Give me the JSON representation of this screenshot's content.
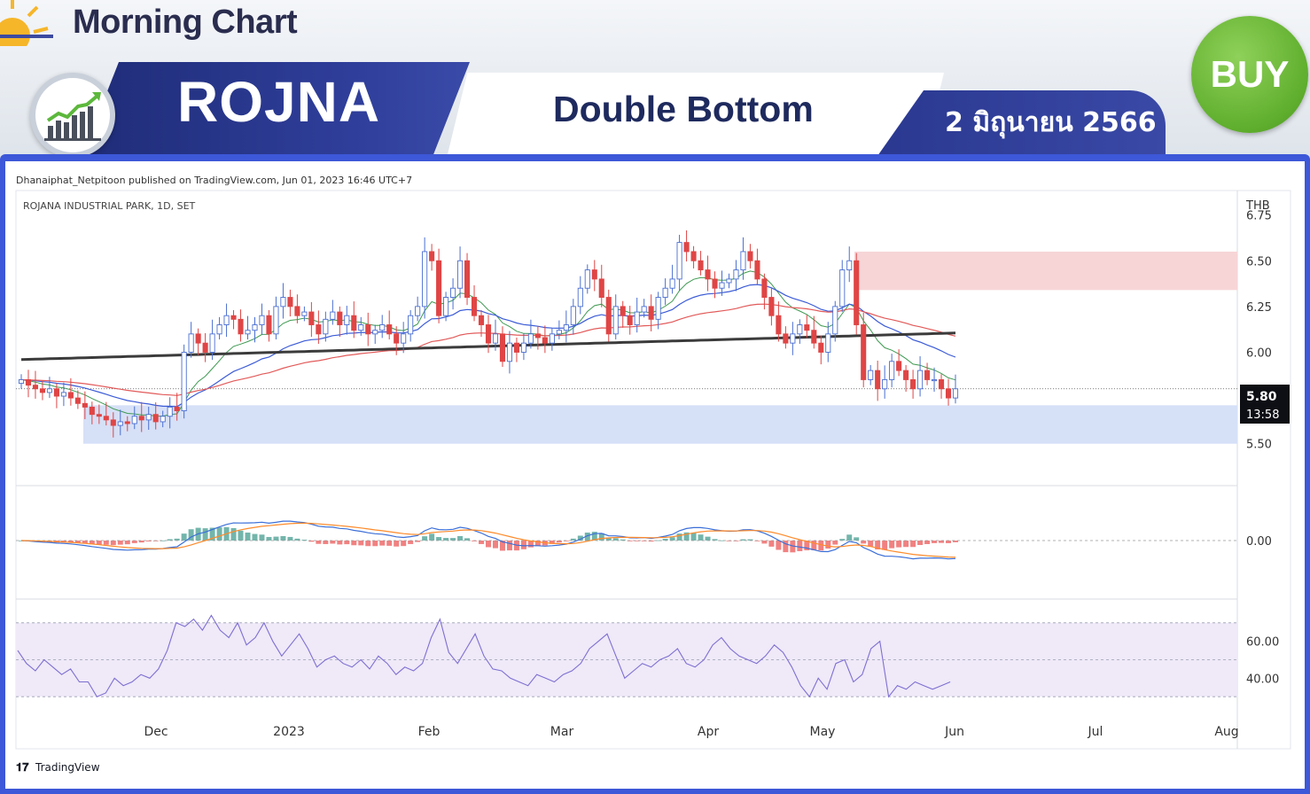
{
  "header": {
    "brand": "Morning Chart",
    "ticker": "ROJNA",
    "pattern": "Double Bottom",
    "date": "2 มิถุนายน 2566",
    "signal": "BUY"
  },
  "colors": {
    "up": "#4a6fd1",
    "down": "#e04545",
    "ema_green": "#3f9a52",
    "ema_blue": "#3b5bd6",
    "ema_red": "#e25a5a",
    "sma_black": "#3b3b3b",
    "macd_line": "#3b6fd8",
    "macd_signal": "#ff8a2a",
    "rsi_line": "#7e6fd1",
    "resistance_zone": "#f7d5d7",
    "support_zone": "#d6e0f7",
    "rsi_band": "#efe9f8"
  },
  "chart_meta": {
    "publisher": "Dhanaiphat_Netpitoon published on TradingView.com, Jun 01, 2023 16:46 UTC+7",
    "symbol": "ROJANA INDUSTRIAL PARK, 1D, SET",
    "currency": "THB",
    "last_price": "5.80",
    "countdown": "13:58",
    "footer": "TradingView"
  },
  "chart_data": [
    {
      "type": "candlestick",
      "ylim": [
        5.3,
        6.85
      ],
      "yticks": [
        "6.75",
        "6.50",
        "6.25",
        "6.00",
        "5.50"
      ],
      "xticks": [
        "Dec",
        "2023",
        "Feb",
        "Mar",
        "Apr",
        "May",
        "Jun",
        "Jul",
        "Aug"
      ],
      "zones": [
        {
          "label": "resistance",
          "from": 6.34,
          "to": 6.55
        },
        {
          "label": "support",
          "from": 5.5,
          "to": 5.71
        }
      ],
      "close": [
        5.85,
        5.82,
        5.8,
        5.78,
        5.8,
        5.76,
        5.78,
        5.75,
        5.72,
        5.7,
        5.66,
        5.65,
        5.63,
        5.6,
        5.62,
        5.61,
        5.65,
        5.63,
        5.66,
        5.62,
        5.65,
        5.7,
        5.68,
        6.0,
        6.1,
        6.05,
        6.0,
        6.1,
        6.15,
        6.2,
        6.18,
        6.1,
        6.12,
        6.15,
        6.2,
        6.1,
        6.25,
        6.3,
        6.25,
        6.2,
        6.22,
        6.15,
        6.1,
        6.18,
        6.22,
        6.15,
        6.2,
        6.12,
        6.15,
        6.1,
        6.12,
        6.15,
        6.1,
        6.05,
        6.1,
        6.2,
        6.25,
        6.55,
        6.5,
        6.2,
        6.3,
        6.35,
        6.5,
        6.3,
        6.2,
        6.15,
        6.05,
        6.1,
        5.95,
        6.05,
        6.0,
        6.05,
        6.1,
        6.08,
        6.05,
        6.1,
        6.12,
        6.15,
        6.25,
        6.35,
        6.45,
        6.4,
        6.3,
        6.1,
        6.25,
        6.2,
        6.15,
        6.22,
        6.25,
        6.18,
        6.3,
        6.35,
        6.4,
        6.6,
        6.55,
        6.5,
        6.45,
        6.4,
        6.35,
        6.38,
        6.4,
        6.45,
        6.55,
        6.5,
        6.4,
        6.3,
        6.2,
        6.1,
        6.05,
        6.1,
        6.15,
        6.12,
        6.05,
        6.0,
        6.1,
        6.25,
        6.45,
        6.5,
        6.15,
        5.85,
        5.9,
        5.8,
        5.85,
        5.95,
        5.9,
        5.85,
        5.8,
        5.9,
        5.85,
        5.85,
        5.8,
        5.75,
        5.8
      ],
      "series": [
        {
          "name": "EMA short",
          "color": "green"
        },
        {
          "name": "EMA mid",
          "color": "blue"
        },
        {
          "name": "EMA long",
          "color": "red"
        },
        {
          "name": "SMA 200",
          "color": "black"
        }
      ]
    },
    {
      "type": "histogram",
      "name": "MACD",
      "yticks": [
        "0.00"
      ]
    },
    {
      "type": "line",
      "name": "RSI",
      "yticks": [
        "60.00",
        "40.00"
      ],
      "bands": [
        30,
        50,
        70
      ],
      "values": [
        55,
        48,
        44,
        50,
        46,
        42,
        45,
        38,
        38,
        30,
        32,
        40,
        36,
        38,
        42,
        40,
        45,
        55,
        70,
        68,
        72,
        66,
        74,
        66,
        62,
        70,
        58,
        62,
        70,
        60,
        52,
        58,
        64,
        56,
        46,
        50,
        52,
        48,
        46,
        50,
        45,
        52,
        48,
        42,
        46,
        44,
        48,
        62,
        72,
        54,
        48,
        56,
        64,
        52,
        45,
        44,
        40,
        38,
        36,
        42,
        40,
        38,
        42,
        44,
        48,
        56,
        60,
        64,
        52,
        40,
        44,
        48,
        46,
        50,
        52,
        56,
        48,
        46,
        50,
        58,
        62,
        56,
        52,
        50,
        48,
        52,
        58,
        54,
        46,
        36,
        30,
        40,
        34,
        48,
        50,
        38,
        42,
        56,
        60,
        30,
        36,
        34,
        38,
        36,
        34,
        36,
        38
      ]
    }
  ]
}
